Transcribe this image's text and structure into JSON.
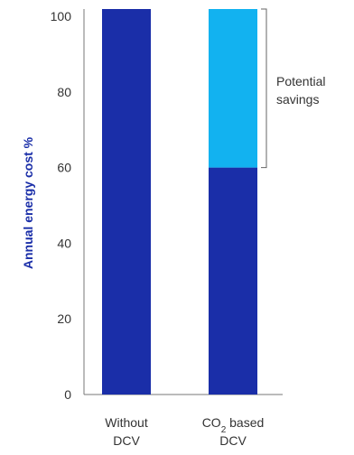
{
  "chart_data": {
    "type": "bar",
    "stacked": true,
    "categories": [
      "Without DCV",
      "CO2 based DCV"
    ],
    "category_lines": [
      [
        "Without",
        "DCV"
      ],
      [
        "CO",
        "2",
        " based",
        "DCV"
      ]
    ],
    "series": [
      {
        "values": [
          100,
          60
        ],
        "color": "#1a2ea8"
      },
      {
        "values": [
          0,
          40
        ],
        "color": "#12b2f0"
      }
    ],
    "ylabel": "Annual energy cost %",
    "ylim": [
      0,
      100
    ],
    "yticks": [
      0,
      20,
      40,
      60,
      80,
      100
    ],
    "annotation": {
      "lines": [
        "Potential",
        "savings"
      ],
      "from": 60,
      "to": 100
    },
    "grid": false,
    "colors": {
      "axis_label": "#1a2ea8",
      "axis": "#777777"
    }
  }
}
